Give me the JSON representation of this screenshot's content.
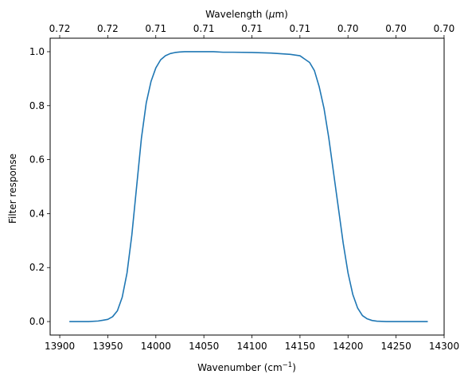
{
  "chart_data": {
    "type": "line",
    "xlabel": "Wavenumber",
    "xlabel_unit": "(cm",
    "xlabel_unit_exp": "−1",
    "xlabel_unit_close": ")",
    "ylabel": "Filter response",
    "top_xlabel": "Wavelength (",
    "top_xlabel_mu": "μ",
    "top_xlabel_unit": "m)",
    "xlim": [
      13890,
      14300
    ],
    "ylim": [
      -0.05,
      1.05
    ],
    "x_ticks": [
      13900,
      13950,
      14000,
      14050,
      14100,
      14150,
      14200,
      14250,
      14300
    ],
    "x_tick_labels": [
      "13900",
      "13950",
      "14000",
      "14050",
      "14100",
      "14150",
      "14200",
      "14250",
      "14300"
    ],
    "y_ticks": [
      0.0,
      0.2,
      0.4,
      0.6,
      0.8,
      1.0
    ],
    "y_tick_labels": [
      "0.0",
      "0.2",
      "0.4",
      "0.6",
      "0.8",
      "1.0"
    ],
    "top_x_ticks": [
      13890,
      13940,
      13990,
      14040,
      14090,
      14140,
      14190,
      14240,
      14290
    ],
    "top_x_tick_labels": [
      "0.72",
      "0.72",
      "0.71",
      "0.71",
      "0.71",
      "0.71",
      "0.70",
      "0.70",
      "0.70"
    ],
    "grid": false,
    "series": [
      {
        "color": "#1f77b4",
        "x": [
          13910,
          13930,
          13940,
          13950,
          13955,
          13960,
          13965,
          13970,
          13975,
          13980,
          13985,
          13990,
          13995,
          14000,
          14005,
          14010,
          14015,
          14020,
          14025,
          14030,
          14040,
          14050,
          14060,
          14070,
          14080,
          14100,
          14120,
          14140,
          14150,
          14160,
          14165,
          14170,
          14175,
          14180,
          14185,
          14190,
          14195,
          14200,
          14205,
          14210,
          14215,
          14220,
          14225,
          14230,
          14240,
          14260,
          14283
        ],
        "y": [
          0.0,
          0.0,
          0.002,
          0.008,
          0.018,
          0.04,
          0.09,
          0.18,
          0.32,
          0.5,
          0.68,
          0.81,
          0.89,
          0.94,
          0.97,
          0.985,
          0.993,
          0.997,
          0.999,
          1.0,
          1.0,
          1.0,
          1.0,
          0.998,
          0.998,
          0.997,
          0.995,
          0.99,
          0.985,
          0.96,
          0.93,
          0.87,
          0.79,
          0.68,
          0.55,
          0.42,
          0.29,
          0.18,
          0.1,
          0.05,
          0.022,
          0.01,
          0.004,
          0.0015,
          0.0,
          0.0,
          0.0
        ]
      }
    ]
  }
}
